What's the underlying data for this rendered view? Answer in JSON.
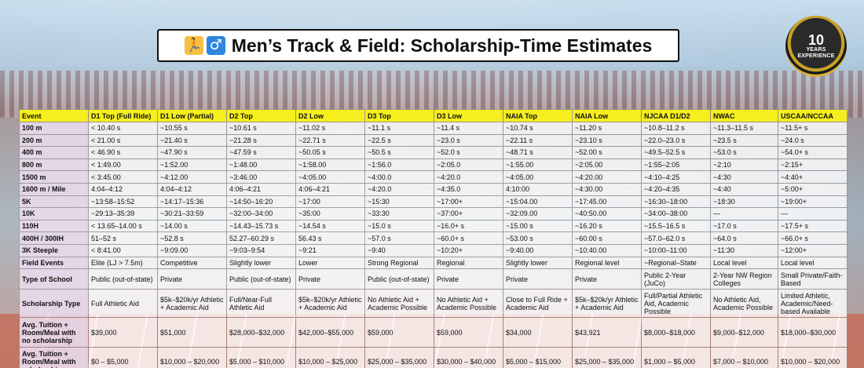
{
  "title": "Men’s Track & Field: Scholarship-Time Estimates",
  "icons": [
    "runner-icon",
    "male-sign-icon"
  ],
  "badge": {
    "number": "10",
    "line1": "YEARS",
    "line2": "EXPERIENCE"
  },
  "colors": {
    "header_row": "#f6ef1e",
    "row_label": "#e9daec",
    "badge_gold": "#c9a227"
  },
  "columns": [
    "Event",
    "D1 Top (Full Ride)",
    "D1 Low (Partial)",
    "D2 Top",
    "D2 Low",
    "D3 Top",
    "D3 Low",
    "NAIA Top",
    "NAIA Low",
    "NJCAA D1/D2",
    "NWAC",
    "USCAA/NCCAA"
  ],
  "rows": [
    [
      "100 m",
      "< 10.40 s",
      "~10.55 s",
      "~10.61 s",
      "~11.02 s",
      "~11.1 s",
      "~11.4 s",
      "~10.74 s",
      "~11.20 s",
      "~10.8–11.2 s",
      "~11.3–11.5 s",
      "~11.5+ s"
    ],
    [
      "200 m",
      "< 21.00 s",
      "~21.40 s",
      "~21.28 s",
      "~22.71 s",
      "~22.5 s",
      "~23.0 s",
      "~22.11 s",
      "~23.10 s",
      "~22.0–23.0 s",
      "~23.5 s",
      "~24.0 s"
    ],
    [
      "400 m",
      "< 46.90 s",
      "~47.90 s",
      "~47.59 s",
      "~50.05 s",
      "~50.5 s",
      "~52.0 s",
      "~48.71 s",
      "~52.00 s",
      "~49.5–52.5 s",
      "~53.0 s",
      "~54.0+ s"
    ],
    [
      "800 m",
      "< 1:49.00",
      "~1:52.00",
      "~1:48.00",
      "~1:58.00",
      "~1:56.0",
      "~2:05.0",
      "~1:55.00",
      "~2:05.00",
      "~1:55–2:05",
      "~2:10",
      "~2:15+"
    ],
    [
      "1500 m",
      "< 3:45.00",
      "~4:12.00",
      "~3:46.00",
      "~4:05.00",
      "~4:00.0",
      "~4:20.0",
      "~4:05.00",
      "~4:20.00",
      "~4:10–4:25",
      "~4:30",
      "~4:40+"
    ],
    [
      "1600 m / Mile",
      "4:04–4:12",
      "4:04–4:12",
      "4:06–4:21",
      "4:06–4:21",
      "~4:20.0",
      "~4:35.0",
      "4:10:00",
      "~4:30.00",
      "~4:20–4:35",
      "~4:40",
      "~5:00+"
    ],
    [
      "5K",
      "~13:58–15:52",
      "~14:17–15:36",
      "~14:50–16:20",
      "~17:00",
      "~15:30",
      "~17:00+",
      "~15:04.00",
      "~17:45.00",
      "~16:30–18:00",
      "~18:30",
      "~19:00+"
    ],
    [
      "10K",
      "~29:13–35:39",
      "~30:21–33:59",
      "~32:00–34:00",
      "~35:00",
      "~33:30",
      "~37:00+",
      "~32:09.00",
      "~40:50.00",
      "~34:00–38:00",
      "—",
      "—"
    ],
    [
      "110H",
      "< 13.65–14.00 s",
      "~14.00 s",
      "~14.43–15.73 s",
      "~14.54 s",
      "~15.0 s",
      "~16.0+ s",
      "~15.00 s",
      "~16.20 s",
      "~15.5–16.5 s",
      "~17.0 s",
      "~17.5+ s"
    ],
    [
      "400H / 300IH",
      "51–52 s",
      "~52.8 s",
      "52.27–60.29 s",
      "56.43 s",
      "~57.0 s",
      "~60.0+ s",
      "~53.00 s",
      "~60.00 s",
      "~57.0–62.0 s",
      "~64.0 s",
      "~66.0+ s"
    ],
    [
      "3K Steeple",
      "< 8:41.00",
      "~9:09.00",
      "~9:03–9:54",
      "~9:21",
      "~9:40",
      "~10:20+",
      "~9:40.00",
      "~10:40.00",
      "~10:00–11:00",
      "~11:30",
      "~12:00+"
    ],
    [
      "Field Events",
      "Elite (LJ > 7.5m)",
      "Competitive",
      "Slightly lower",
      "Lower",
      "Strong Regional",
      "Regional",
      "Slightly lower",
      "Regional level",
      "~Regional–State",
      "Local level",
      "Local level"
    ],
    [
      "Type of School",
      "Public (out-of-state)",
      "Private",
      "Public (out-of-state)",
      "Private",
      "Public (out-of-state)",
      "Private",
      "Private",
      "Private",
      "Public 2-Year (JuCo)",
      "2-Year NW Region Colleges",
      "Small Private/Faith-Based"
    ],
    [
      "Scholarship Type",
      "Full Athletic Aid",
      "$5k–$20k/yr Athletic + Academic Aid",
      "Full/Near-Full Athletic Aid",
      "$5k–$20k/yr Athletic + Academic Aid",
      "No Athletic Aid + Academic Possible",
      "No Athletic Aid + Academic Possible",
      "Close to Full Ride + Academic Aid",
      "$5k–$20k/yr Athletic + Academic Aid",
      "Full/Partial Athletic Aid, Academic Possible",
      "No Athletic Aid, Academic Possible",
      "Limited Athletic, Academic/Need-based Available"
    ],
    [
      "Avg. Tuition + Room/Meal with no scholarship",
      "$39,000",
      "$51,000",
      "$28,000–$32,000",
      "$42,000–$55,000",
      "$59,000",
      "$59,000",
      "$34,000",
      "$43,921",
      "$8,000–$18,000",
      "$9,000–$12,000",
      "$18,000–$30,000"
    ],
    [
      "Avg. Tuition + Room/Meal with scholarship",
      "$0 – $5,000",
      "$10,000 – $20,000",
      "$5,000 – $10,000",
      "$10,000 – $25,000",
      "$25,000 – $35,000",
      "$30,000 – $40,000",
      "$5,000 – $15,000",
      "$25,000 – $35,000",
      "$1,000 – $5,000",
      "$7,000 – $10,000",
      "$10,000 – $20,000"
    ]
  ]
}
